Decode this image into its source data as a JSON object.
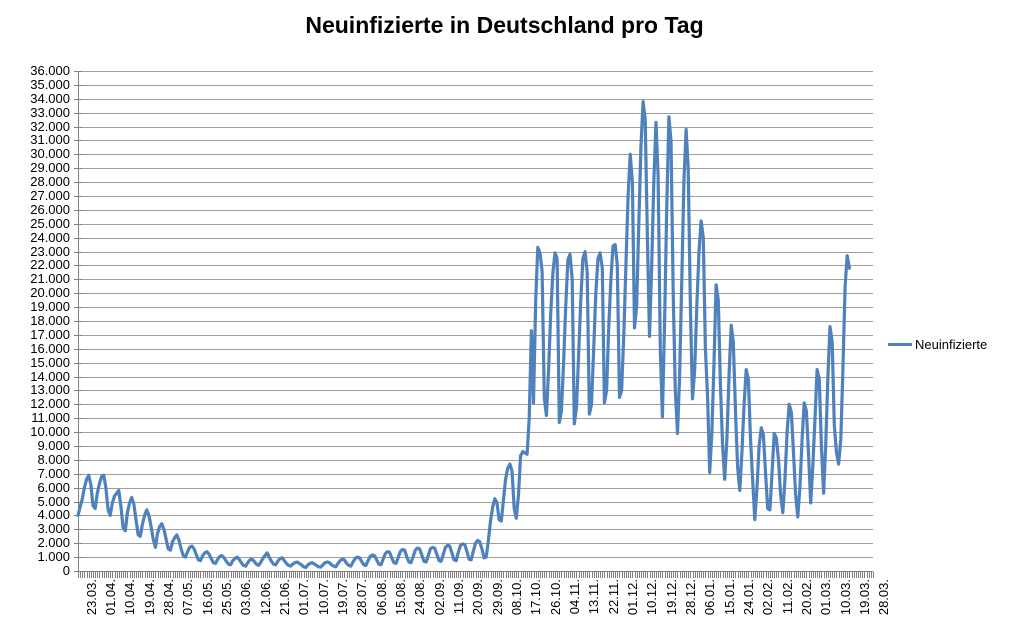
{
  "chart_data": {
    "type": "line",
    "title": "Neuinfizierte in Deutschland pro Tag",
    "xlabel": "",
    "ylabel": "",
    "ylim": [
      0,
      36000
    ],
    "y_tick_step": 1000,
    "y_tick_labels": [
      "0",
      "1.000",
      "2.000",
      "3.000",
      "4.000",
      "5.000",
      "6.000",
      "7.000",
      "8.000",
      "9.000",
      "10.000",
      "11.000",
      "12.000",
      "13.000",
      "14.000",
      "15.000",
      "16.000",
      "17.000",
      "18.000",
      "19.000",
      "20.000",
      "21.000",
      "22.000",
      "23.000",
      "24.000",
      "25.000",
      "26.000",
      "27.000",
      "28.000",
      "29.000",
      "30.000",
      "31.000",
      "32.000",
      "33.000",
      "34.000",
      "35.000",
      "36.000"
    ],
    "x_tick_labels": [
      "23.03.",
      "01.04.",
      "10.04.",
      "19.04.",
      "28.04.",
      "07.05.",
      "16.05.",
      "25.05.",
      "03.06.",
      "12.06.",
      "21.06.",
      "01.07.",
      "10.07.",
      "19.07.",
      "28.07.",
      "06.08.",
      "15.08.",
      "24.08.",
      "02.09.",
      "11.09.",
      "20.09.",
      "29.09.",
      "08.10.",
      "17.10.",
      "26.10.",
      "04.11.",
      "13.11.",
      "22.11.",
      "01.12.",
      "10.12.",
      "19.12.",
      "28.12.",
      "06.01.",
      "15.01.",
      "24.01.",
      "02.02.",
      "11.02.",
      "20.02.",
      "01.03.",
      "10.03.",
      "19.03.",
      "28.03."
    ],
    "x_label_interval_days": 9,
    "x_total_days": 370,
    "grid": true,
    "legend_position": "right",
    "colors": {
      "series": "#4F81BD",
      "gridline": "#9E9E9E",
      "axis": "#808080",
      "text": "#000000",
      "background": "#FFFFFF"
    },
    "series": [
      {
        "name": "Neuinfizierte",
        "x_step_days": 1,
        "values": [
          4000,
          4600,
          5200,
          6000,
          6600,
          6900,
          6200,
          4700,
          4500,
          5600,
          6300,
          6800,
          6900,
          6000,
          4400,
          4000,
          4900,
          5400,
          5600,
          5800,
          4600,
          3100,
          2900,
          4200,
          4900,
          5300,
          4800,
          3700,
          2600,
          2500,
          3400,
          4000,
          4400,
          4000,
          3200,
          2300,
          1700,
          2700,
          3200,
          3400,
          3000,
          2300,
          1600,
          1500,
          2100,
          2400,
          2600,
          2200,
          1600,
          1100,
          1000,
          1400,
          1700,
          1800,
          1600,
          1200,
          800,
          750,
          1100,
          1300,
          1400,
          1200,
          900,
          600,
          550,
          850,
          1050,
          1100,
          950,
          700,
          500,
          450,
          750,
          900,
          1000,
          850,
          600,
          400,
          350,
          600,
          800,
          850,
          700,
          500,
          400,
          600,
          900,
          1100,
          1300,
          1000,
          700,
          500,
          450,
          700,
          900,
          950,
          750,
          550,
          400,
          350,
          500,
          600,
          650,
          550,
          450,
          300,
          250,
          450,
          550,
          600,
          500,
          400,
          300,
          280,
          450,
          600,
          650,
          600,
          450,
          350,
          300,
          550,
          750,
          850,
          800,
          550,
          400,
          350,
          650,
          900,
          1000,
          950,
          700,
          450,
          400,
          750,
          1050,
          1150,
          1100,
          800,
          500,
          450,
          850,
          1250,
          1400,
          1350,
          950,
          600,
          550,
          950,
          1400,
          1550,
          1500,
          1050,
          650,
          600,
          1050,
          1500,
          1650,
          1600,
          1150,
          700,
          650,
          1100,
          1600,
          1700,
          1650,
          1200,
          750,
          700,
          1200,
          1700,
          1850,
          1800,
          1300,
          800,
          750,
          1350,
          1850,
          1950,
          1900,
          1400,
          850,
          800,
          1450,
          2000,
          2200,
          2100,
          1600,
          950,
          1000,
          2200,
          3600,
          4600,
          5200,
          4900,
          3700,
          3600,
          5100,
          6600,
          7400,
          7700,
          7200,
          4500,
          3800,
          5500,
          8300,
          8600,
          8500,
          8400,
          11000,
          17300,
          12100,
          19500,
          23300,
          22900,
          21600,
          12500,
          11200,
          14500,
          18500,
          21500,
          22900,
          22500,
          10700,
          11500,
          15000,
          19000,
          22400,
          22800,
          21000,
          10600,
          11800,
          15500,
          19500,
          22500,
          23000,
          21500,
          11300,
          12000,
          16000,
          20000,
          22500,
          22900,
          21800,
          12100,
          13000,
          17500,
          21000,
          23400,
          23500,
          22000,
          12500,
          13000,
          17000,
          22000,
          27000,
          30000,
          28000,
          17500,
          19000,
          25000,
          30500,
          33800,
          32500,
          24000,
          16900,
          22000,
          28000,
          32300,
          28500,
          16000,
          11100,
          18000,
          26000,
          32700,
          31000,
          20000,
          13000,
          9900,
          14000,
          21000,
          28000,
          31800,
          29000,
          19000,
          12400,
          14500,
          19000,
          23000,
          25200,
          24000,
          16000,
          12500,
          7100,
          10000,
          15000,
          20600,
          19500,
          13500,
          9000,
          6600,
          9500,
          14000,
          17700,
          16500,
          11500,
          7500,
          5800,
          8500,
          12000,
          14500,
          13800,
          9500,
          6500,
          3700,
          6000,
          9000,
          10300,
          9800,
          7000,
          4500,
          4400,
          7000,
          9900,
          9600,
          8000,
          5500,
          4200,
          6500,
          10000,
          12000,
          11400,
          8500,
          5500,
          3900,
          6000,
          9500,
          12100,
          11500,
          8500,
          4900,
          7500,
          11000,
          14500,
          13800,
          9000,
          5600,
          9000,
          14000,
          17600,
          16500,
          10500,
          8500,
          7700,
          9500,
          14500,
          20500,
          22700,
          21800
        ]
      }
    ]
  }
}
